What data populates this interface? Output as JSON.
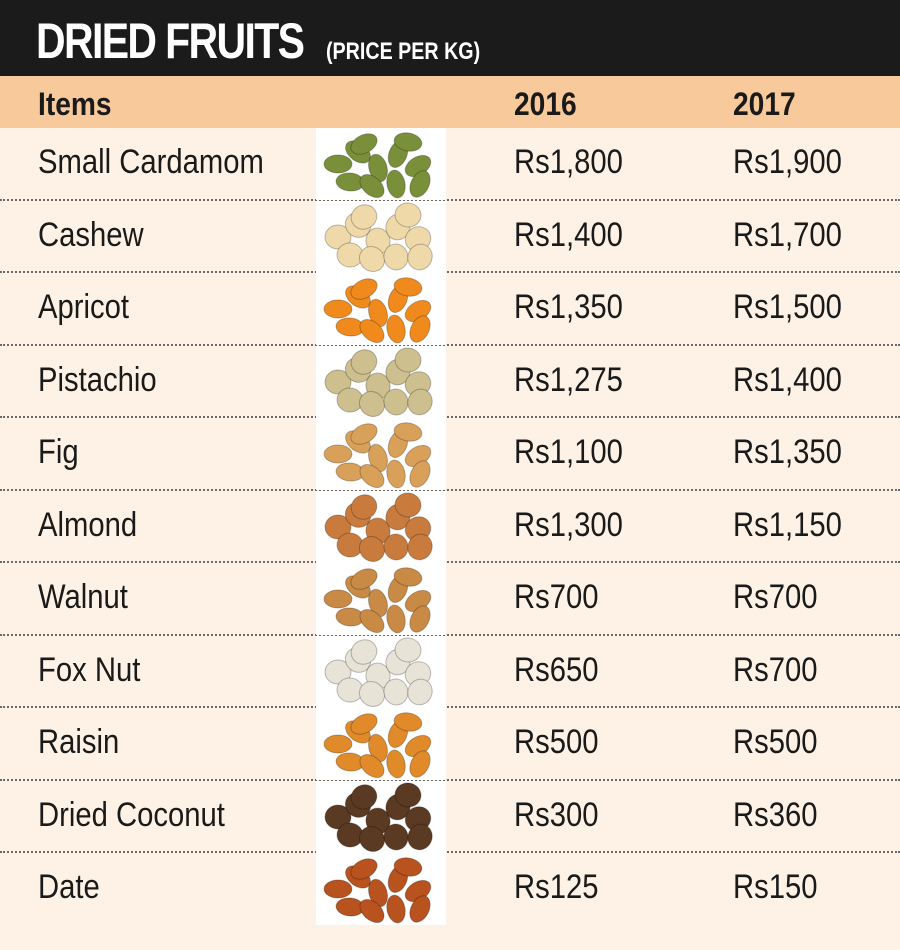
{
  "title": "DRIED FRUITS",
  "subtitle": "(PRICE PER KG)",
  "chart_data": {
    "type": "table",
    "columns": [
      "Items",
      "2016",
      "2017"
    ],
    "rows": [
      {
        "item": "Small Cardamom",
        "y2016": "Rs1,800",
        "y2017": "Rs1,900",
        "icon": "cardamom-icon",
        "color": "#7a8f3a"
      },
      {
        "item": "Cashew",
        "y2016": "Rs1,400",
        "y2017": "Rs1,700",
        "icon": "cashew-icon",
        "color": "#efd9a8"
      },
      {
        "item": "Apricot",
        "y2016": "Rs1,350",
        "y2017": "Rs1,500",
        "icon": "apricot-icon",
        "color": "#f08a1c"
      },
      {
        "item": "Pistachio",
        "y2016": "Rs1,275",
        "y2017": "Rs1,400",
        "icon": "pistachio-icon",
        "color": "#cdbf8e"
      },
      {
        "item": "Fig",
        "y2016": "Rs1,100",
        "y2017": "Rs1,350",
        "icon": "fig-icon",
        "color": "#d9a05a"
      },
      {
        "item": "Almond",
        "y2016": "Rs1,300",
        "y2017": "Rs1,150",
        "icon": "almond-icon",
        "color": "#c97b3e"
      },
      {
        "item": "Walnut",
        "y2016": "Rs700",
        "y2017": "Rs700",
        "icon": "walnut-icon",
        "color": "#c98a45"
      },
      {
        "item": "Fox Nut",
        "y2016": "Rs650",
        "y2017": "Rs700",
        "icon": "fox-nut-icon",
        "color": "#e7e3d6"
      },
      {
        "item": "Raisin",
        "y2016": "Rs500",
        "y2017": "Rs500",
        "icon": "raisin-icon",
        "color": "#e08a2a"
      },
      {
        "item": "Dried Coconut",
        "y2016": "Rs300",
        "y2017": "Rs360",
        "icon": "coconut-icon",
        "color": "#5a3a22"
      },
      {
        "item": "Date",
        "y2016": "Rs125",
        "y2017": "Rs150",
        "icon": "date-icon",
        "color": "#b8521e"
      }
    ]
  },
  "colors": {
    "title_bg": "#1b1b1b",
    "header_bg": "#f7c99b",
    "body_bg": "#fdf2e5"
  }
}
